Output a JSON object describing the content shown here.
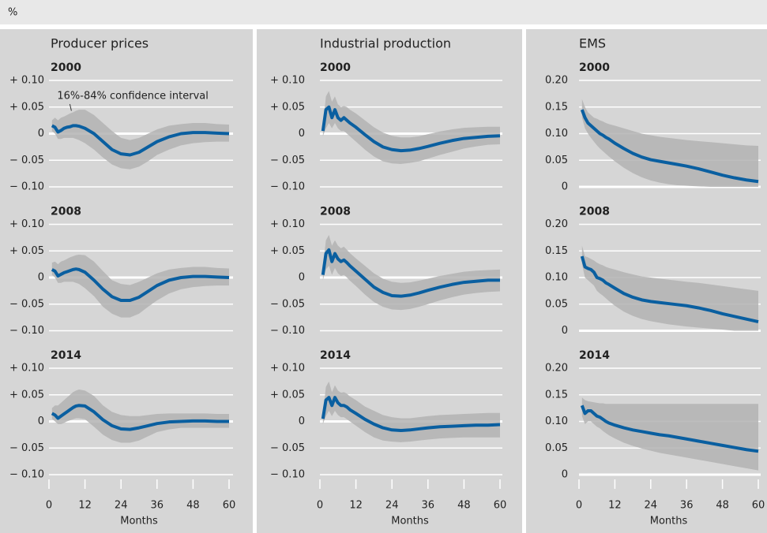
{
  "unit_label": "%",
  "chart_data": [
    {
      "type": "line",
      "title": "Producer prices",
      "xlabel": "Months",
      "color": "#0a5fa0",
      "band_color": "#b3b3b3",
      "xlim": [
        0,
        60
      ],
      "xticks": [
        0,
        12,
        24,
        36,
        48,
        60
      ],
      "ylim": [
        -0.1,
        0.1
      ],
      "yticks": [
        {
          "value": 0.1,
          "label": "+ 0.10"
        },
        {
          "value": 0.05,
          "label": "+ 0.05"
        },
        0,
        {
          "value": -0.05,
          "label": "− 0.05"
        },
        {
          "value": -0.1,
          "label": "− 0.10"
        }
      ],
      "x": [
        1,
        2,
        3,
        4,
        5,
        6,
        7,
        8,
        9,
        10,
        12,
        15,
        18,
        21,
        24,
        27,
        30,
        33,
        36,
        40,
        44,
        48,
        52,
        56,
        60
      ],
      "panels": [
        {
          "subtitle": "2000",
          "annotation": "16%-84% confidence interval",
          "values": [
            0.015,
            0.012,
            0.003,
            0.006,
            0.01,
            0.012,
            0.013,
            0.015,
            0.015,
            0.014,
            0.01,
            0,
            -0.015,
            -0.03,
            -0.038,
            -0.04,
            -0.035,
            -0.025,
            -0.015,
            -0.006,
            0,
            0.002,
            0.002,
            0.001,
            0
          ],
          "lower": [
            0.005,
            0,
            -0.01,
            -0.01,
            -0.008,
            -0.008,
            -0.008,
            -0.008,
            -0.01,
            -0.012,
            -0.018,
            -0.03,
            -0.045,
            -0.058,
            -0.065,
            -0.067,
            -0.062,
            -0.052,
            -0.04,
            -0.03,
            -0.022,
            -0.018,
            -0.016,
            -0.015,
            -0.015
          ],
          "upper": [
            0.025,
            0.03,
            0.025,
            0.03,
            0.032,
            0.035,
            0.038,
            0.04,
            0.043,
            0.045,
            0.045,
            0.035,
            0.02,
            0.005,
            -0.008,
            -0.012,
            -0.008,
            0,
            0.008,
            0.015,
            0.018,
            0.02,
            0.02,
            0.018,
            0.017
          ]
        },
        {
          "subtitle": "2008",
          "values": [
            0.015,
            0.012,
            0.003,
            0.006,
            0.009,
            0.011,
            0.013,
            0.015,
            0.016,
            0.015,
            0.01,
            -0.005,
            -0.022,
            -0.036,
            -0.043,
            -0.043,
            -0.037,
            -0.026,
            -0.015,
            -0.005,
            0,
            0.002,
            0.002,
            0.001,
            0
          ],
          "lower": [
            0.005,
            0,
            -0.01,
            -0.01,
            -0.008,
            -0.008,
            -0.008,
            -0.008,
            -0.01,
            -0.012,
            -0.02,
            -0.035,
            -0.055,
            -0.068,
            -0.075,
            -0.075,
            -0.068,
            -0.055,
            -0.043,
            -0.03,
            -0.022,
            -0.018,
            -0.016,
            -0.015,
            -0.015
          ],
          "upper": [
            0.028,
            0.03,
            0.025,
            0.03,
            0.032,
            0.035,
            0.038,
            0.04,
            0.042,
            0.043,
            0.042,
            0.03,
            0.012,
            -0.005,
            -0.012,
            -0.014,
            -0.008,
            0,
            0.008,
            0.015,
            0.018,
            0.02,
            0.02,
            0.018,
            0.017
          ]
        },
        {
          "subtitle": "2014",
          "values": [
            0.015,
            0.012,
            0.006,
            0.01,
            0.014,
            0.018,
            0.022,
            0.026,
            0.029,
            0.03,
            0.029,
            0.018,
            0.003,
            -0.008,
            -0.014,
            -0.015,
            -0.012,
            -0.008,
            -0.004,
            -0.001,
            0,
            0.001,
            0.001,
            0,
            0
          ],
          "lower": [
            0.005,
            0,
            -0.005,
            -0.005,
            -0.003,
            0,
            0.002,
            0.004,
            0.006,
            0.006,
            0.004,
            -0.01,
            -0.025,
            -0.035,
            -0.04,
            -0.04,
            -0.036,
            -0.028,
            -0.02,
            -0.015,
            -0.012,
            -0.012,
            -0.012,
            -0.012,
            -0.012
          ],
          "upper": [
            0.025,
            0.03,
            0.03,
            0.035,
            0.04,
            0.045,
            0.05,
            0.055,
            0.058,
            0.06,
            0.058,
            0.048,
            0.03,
            0.018,
            0.012,
            0.01,
            0.01,
            0.012,
            0.014,
            0.015,
            0.015,
            0.015,
            0.015,
            0.014,
            0.014
          ]
        }
      ]
    },
    {
      "type": "line",
      "title": "Industrial production",
      "xlabel": "Months",
      "color": "#0a5fa0",
      "band_color": "#b3b3b3",
      "xlim": [
        0,
        60
      ],
      "xticks": [
        0,
        12,
        24,
        36,
        48,
        60
      ],
      "ylim": [
        -0.1,
        0.1
      ],
      "yticks": [
        {
          "value": 0.1,
          "label": "+ 0.10"
        },
        {
          "value": 0.05,
          "label": "+ 0.05"
        },
        0,
        {
          "value": -0.05,
          "label": "− 0.05"
        },
        {
          "value": -0.1,
          "label": "− 0.10"
        }
      ],
      "x": [
        1,
        2,
        3,
        4,
        5,
        6,
        7,
        8,
        9,
        10,
        12,
        15,
        18,
        21,
        24,
        27,
        30,
        33,
        36,
        40,
        44,
        48,
        52,
        56,
        60
      ],
      "panels": [
        {
          "subtitle": "2000",
          "values": [
            0.005,
            0.045,
            0.05,
            0.03,
            0.045,
            0.03,
            0.025,
            0.03,
            0.025,
            0.02,
            0.012,
            -0.002,
            -0.015,
            -0.025,
            -0.03,
            -0.032,
            -0.031,
            -0.028,
            -0.024,
            -0.018,
            -0.013,
            -0.009,
            -0.007,
            -0.005,
            -0.004
          ],
          "lower": [
            -0.005,
            0.01,
            0.02,
            0.01,
            0.02,
            0.01,
            0.005,
            0.005,
            0,
            -0.005,
            -0.015,
            -0.03,
            -0.043,
            -0.052,
            -0.056,
            -0.057,
            -0.055,
            -0.052,
            -0.047,
            -0.04,
            -0.034,
            -0.028,
            -0.024,
            -0.021,
            -0.02
          ],
          "upper": [
            0.015,
            0.07,
            0.08,
            0.06,
            0.07,
            0.055,
            0.05,
            0.052,
            0.05,
            0.045,
            0.038,
            0.025,
            0.012,
            0.002,
            -0.004,
            -0.007,
            -0.007,
            -0.005,
            -0.001,
            0.004,
            0.008,
            0.011,
            0.012,
            0.013,
            0.013
          ]
        },
        {
          "subtitle": "2008",
          "values": [
            0.005,
            0.045,
            0.052,
            0.03,
            0.045,
            0.035,
            0.03,
            0.033,
            0.028,
            0.022,
            0.012,
            -0.003,
            -0.018,
            -0.028,
            -0.034,
            -0.035,
            -0.033,
            -0.029,
            -0.024,
            -0.018,
            -0.013,
            -0.009,
            -0.007,
            -0.005,
            -0.005
          ],
          "lower": [
            -0.005,
            0.015,
            0.022,
            0.005,
            0.018,
            0.008,
            0.003,
            0.005,
            0,
            -0.006,
            -0.016,
            -0.032,
            -0.046,
            -0.055,
            -0.06,
            -0.061,
            -0.059,
            -0.055,
            -0.05,
            -0.043,
            -0.037,
            -0.032,
            -0.029,
            -0.027,
            -0.026
          ],
          "upper": [
            0.02,
            0.07,
            0.08,
            0.06,
            0.07,
            0.06,
            0.055,
            0.058,
            0.052,
            0.046,
            0.036,
            0.022,
            0.008,
            -0.002,
            -0.008,
            -0.01,
            -0.009,
            -0.006,
            -0.002,
            0.003,
            0.007,
            0.011,
            0.013,
            0.014,
            0.015
          ]
        },
        {
          "subtitle": "2014",
          "values": [
            0.005,
            0.04,
            0.045,
            0.03,
            0.045,
            0.035,
            0.03,
            0.03,
            0.027,
            0.022,
            0.015,
            0.004,
            -0.005,
            -0.012,
            -0.016,
            -0.017,
            -0.016,
            -0.014,
            -0.012,
            -0.01,
            -0.009,
            -0.008,
            -0.007,
            -0.007,
            -0.006
          ],
          "lower": [
            -0.005,
            0.01,
            0.02,
            0.01,
            0.02,
            0.012,
            0.008,
            0.008,
            0.004,
            0,
            -0.008,
            -0.02,
            -0.03,
            -0.036,
            -0.038,
            -0.039,
            -0.038,
            -0.036,
            -0.034,
            -0.032,
            -0.031,
            -0.03,
            -0.03,
            -0.03,
            -0.03
          ],
          "upper": [
            0.015,
            0.065,
            0.075,
            0.055,
            0.068,
            0.058,
            0.054,
            0.055,
            0.052,
            0.047,
            0.04,
            0.028,
            0.02,
            0.012,
            0.008,
            0.006,
            0.006,
            0.008,
            0.01,
            0.012,
            0.013,
            0.014,
            0.015,
            0.016,
            0.016
          ]
        }
      ]
    },
    {
      "type": "line",
      "title": "EMS",
      "xlabel": "Months",
      "color": "#0a5fa0",
      "band_color": "#b3b3b3",
      "xlim": [
        0,
        60
      ],
      "xticks": [
        0,
        12,
        24,
        36,
        48,
        60
      ],
      "ylim": [
        0,
        0.2
      ],
      "yticks": [
        {
          "value": 0.2,
          "label": "0.20"
        },
        {
          "value": 0.15,
          "label": "0.15"
        },
        {
          "value": 0.1,
          "label": "0.10"
        },
        {
          "value": 0.05,
          "label": "0.05"
        },
        0
      ],
      "x": [
        1,
        2,
        3,
        4,
        5,
        6,
        7,
        8,
        9,
        10,
        12,
        15,
        18,
        21,
        24,
        27,
        30,
        33,
        36,
        40,
        44,
        48,
        52,
        56,
        60
      ],
      "panels": [
        {
          "subtitle": "2000",
          "values": [
            0.145,
            0.13,
            0.12,
            0.115,
            0.11,
            0.105,
            0.1,
            0.097,
            0.093,
            0.09,
            0.082,
            0.072,
            0.063,
            0.056,
            0.051,
            0.048,
            0.045,
            0.042,
            0.039,
            0.034,
            0.028,
            0.022,
            0.017,
            0.013,
            0.01
          ],
          "lower": [
            0.13,
            0.11,
            0.1,
            0.092,
            0.085,
            0.078,
            0.072,
            0.067,
            0.062,
            0.057,
            0.048,
            0.036,
            0.026,
            0.018,
            0.012,
            0.008,
            0.005,
            0.003,
            0.002,
            0.001,
            0,
            0,
            0,
            0,
            0
          ],
          "upper": [
            0.165,
            0.15,
            0.14,
            0.135,
            0.13,
            0.128,
            0.125,
            0.123,
            0.12,
            0.118,
            0.115,
            0.11,
            0.105,
            0.1,
            0.097,
            0.094,
            0.092,
            0.09,
            0.088,
            0.086,
            0.084,
            0.082,
            0.08,
            0.078,
            0.077
          ]
        },
        {
          "subtitle": "2008",
          "values": [
            0.14,
            0.12,
            0.117,
            0.115,
            0.11,
            0.1,
            0.098,
            0.095,
            0.09,
            0.087,
            0.08,
            0.07,
            0.063,
            0.058,
            0.055,
            0.053,
            0.051,
            0.049,
            0.047,
            0.043,
            0.038,
            0.032,
            0.027,
            0.022,
            0.017
          ],
          "lower": [
            0.125,
            0.1,
            0.095,
            0.09,
            0.085,
            0.075,
            0.07,
            0.066,
            0.061,
            0.056,
            0.047,
            0.036,
            0.028,
            0.022,
            0.018,
            0.015,
            0.012,
            0.01,
            0.008,
            0.006,
            0.004,
            0.002,
            0,
            0,
            0
          ],
          "upper": [
            0.16,
            0.14,
            0.138,
            0.135,
            0.132,
            0.128,
            0.125,
            0.123,
            0.12,
            0.118,
            0.115,
            0.11,
            0.106,
            0.102,
            0.1,
            0.098,
            0.096,
            0.094,
            0.092,
            0.09,
            0.087,
            0.084,
            0.081,
            0.078,
            0.075
          ]
        },
        {
          "subtitle": "2014",
          "values": [
            0.13,
            0.115,
            0.12,
            0.12,
            0.115,
            0.11,
            0.108,
            0.104,
            0.1,
            0.097,
            0.093,
            0.088,
            0.084,
            0.081,
            0.078,
            0.075,
            0.073,
            0.07,
            0.067,
            0.063,
            0.059,
            0.055,
            0.051,
            0.047,
            0.044
          ],
          "lower": [
            0.11,
            0.095,
            0.1,
            0.1,
            0.095,
            0.09,
            0.087,
            0.082,
            0.078,
            0.074,
            0.068,
            0.06,
            0.054,
            0.049,
            0.045,
            0.041,
            0.038,
            0.035,
            0.032,
            0.028,
            0.024,
            0.02,
            0.016,
            0.012,
            0.008
          ],
          "upper": [
            0.145,
            0.14,
            0.138,
            0.137,
            0.136,
            0.135,
            0.134,
            0.134,
            0.133,
            0.133,
            0.133,
            0.133,
            0.133,
            0.133,
            0.133,
            0.133,
            0.133,
            0.133,
            0.133,
            0.133,
            0.133,
            0.133,
            0.133,
            0.133,
            0.133
          ]
        }
      ]
    }
  ]
}
